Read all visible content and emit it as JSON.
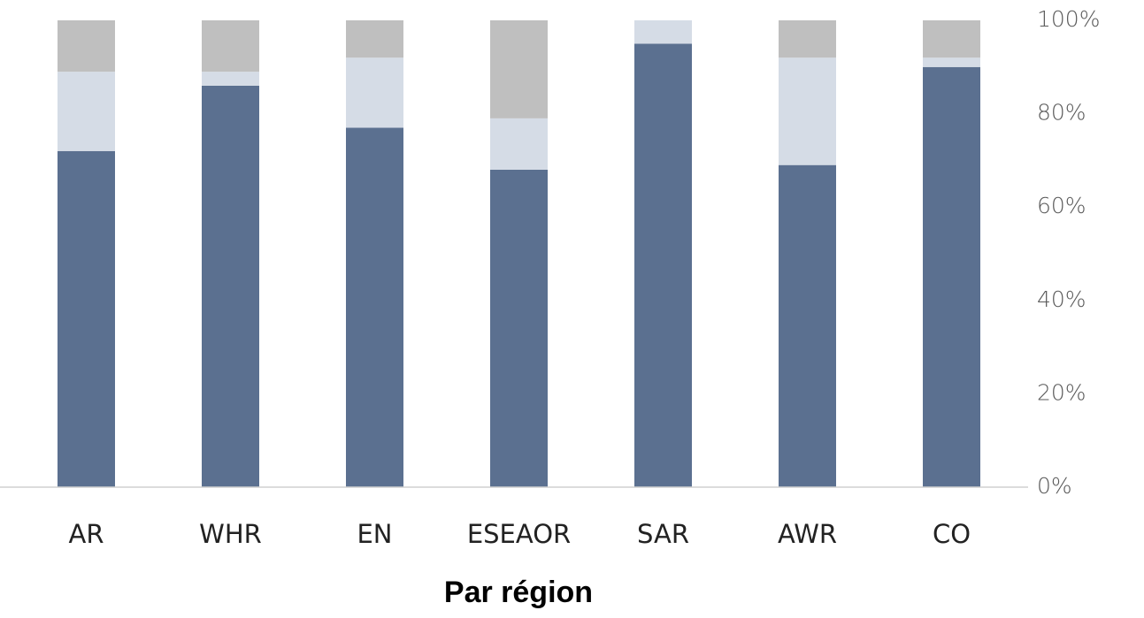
{
  "chart_data": {
    "type": "stacked_bar",
    "title": "Par région",
    "categories": [
      "AR",
      "WHR",
      "EN",
      "ESEAOR",
      "SAR",
      "AWR",
      "CO"
    ],
    "series": [
      {
        "color": "#5b7090",
        "values": [
          72,
          86,
          77,
          68,
          95,
          69,
          90
        ]
      },
      {
        "color": "#d5dce6",
        "values": [
          17,
          3,
          15,
          11,
          5,
          23,
          2
        ]
      },
      {
        "color": "#bfbfbf",
        "values": [
          11,
          11,
          8,
          21,
          0,
          8,
          8
        ]
      }
    ],
    "ylim": [
      0,
      100
    ],
    "yticks": [
      {
        "value": 0,
        "label": "0%"
      },
      {
        "value": 20,
        "label": "20%"
      },
      {
        "value": 40,
        "label": "40%"
      },
      {
        "value": 60,
        "label": "60%"
      },
      {
        "value": 80,
        "label": "80%"
      },
      {
        "value": 100,
        "label": "100%"
      }
    ],
    "grid": false
  }
}
